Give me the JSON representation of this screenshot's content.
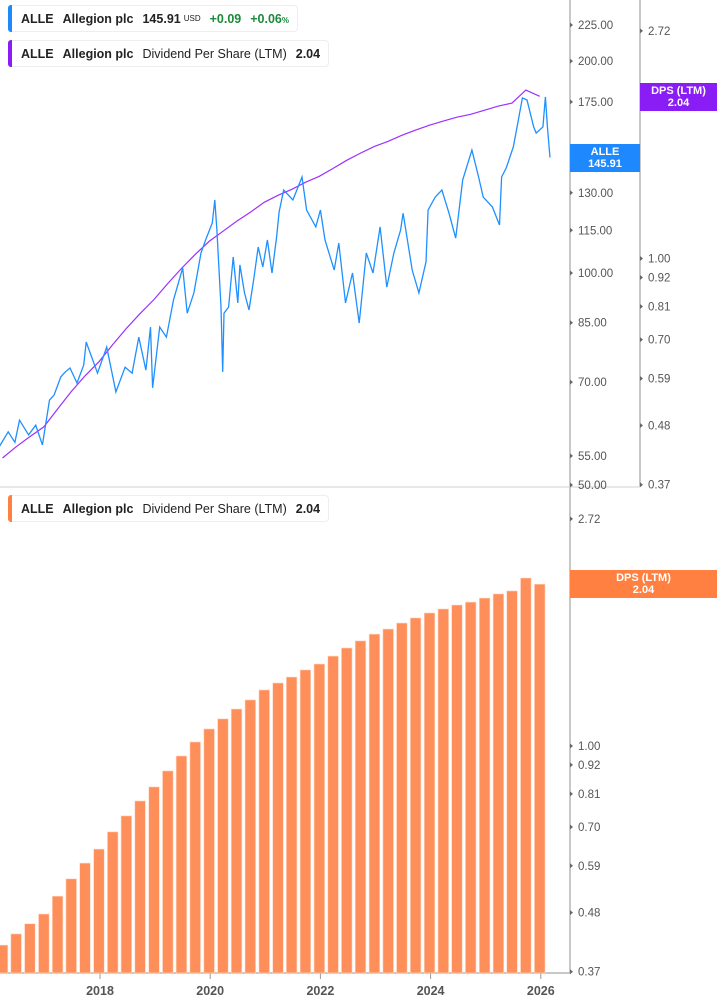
{
  "legend_price": {
    "ticker": "ALLE",
    "company": "Allegion plc",
    "price": "145.91",
    "currency": "USD",
    "change": "+0.09",
    "change_pct": "+0.06",
    "pct_sign": "%",
    "color": "#1e88ff"
  },
  "legend_dps_top": {
    "ticker": "ALLE",
    "company": "Allegion plc",
    "metric": "Dividend Per Share (LTM)",
    "value": "2.04",
    "color": "#8a1cf5"
  },
  "legend_dps_bottom": {
    "ticker": "ALLE",
    "company": "Allegion plc",
    "metric": "Dividend Per Share (LTM)",
    "value": "2.04",
    "color": "#ff8040"
  },
  "badges": {
    "price": {
      "label": "ALLE",
      "value": "145.91",
      "color": "#1e88ff"
    },
    "dps_top": {
      "label": "DPS (LTM)",
      "value": "2.04",
      "color": "#8a1cf5"
    },
    "dps_bottom": {
      "label": "DPS (LTM)",
      "value": "2.04",
      "color": "#ff8040"
    }
  },
  "chart_data": [
    {
      "type": "line",
      "scale": "log",
      "series": [
        {
          "name": "ALLE",
          "axis": "left",
          "color": "#1e90ff",
          "points": [
            [
              "2016-03-01",
              56.6
            ],
            [
              "2016-05-01",
              59.5
            ],
            [
              "2016-06-15",
              57.5
            ],
            [
              "2016-07-15",
              61.8
            ],
            [
              "2016-09-15",
              58.9
            ],
            [
              "2016-11-01",
              60.8
            ],
            [
              "2016-12-15",
              57.0
            ],
            [
              "2017-02-01",
              66.0
            ],
            [
              "2017-03-01",
              67.1
            ],
            [
              "2017-04-15",
              71.2
            ],
            [
              "2017-05-15",
              72.4
            ],
            [
              "2017-06-15",
              73.3
            ],
            [
              "2017-08-01",
              69.8
            ],
            [
              "2017-09-15",
              74.0
            ],
            [
              "2017-10-01",
              79.8
            ],
            [
              "2017-12-15",
              72.1
            ],
            [
              "2018-02-15",
              78.5
            ],
            [
              "2018-04-15",
              67.8
            ],
            [
              "2018-06-15",
              73.5
            ],
            [
              "2018-08-01",
              72.1
            ],
            [
              "2018-09-15",
              81.1
            ],
            [
              "2018-11-01",
              72.8
            ],
            [
              "2018-12-01",
              83.8
            ],
            [
              "2018-12-15",
              68.7
            ],
            [
              "2019-02-01",
              83.8
            ],
            [
              "2019-03-15",
              81.1
            ],
            [
              "2019-05-01",
              91.6
            ],
            [
              "2019-07-01",
              101.7
            ],
            [
              "2019-08-01",
              87.7
            ],
            [
              "2019-09-15",
              93.7
            ],
            [
              "2019-11-01",
              106.8
            ],
            [
              "2019-12-01",
              111.4
            ],
            [
              "2020-01-15",
              117.8
            ],
            [
              "2020-02-01",
              127.0
            ],
            [
              "2020-02-15",
              115.1
            ],
            [
              "2020-03-12",
              89.5
            ],
            [
              "2020-03-23",
              72.4
            ],
            [
              "2020-04-01",
              87.7
            ],
            [
              "2020-05-01",
              89.5
            ],
            [
              "2020-06-01",
              105.4
            ],
            [
              "2020-07-01",
              90.7
            ],
            [
              "2020-07-15",
              102.7
            ],
            [
              "2020-08-15",
              93.7
            ],
            [
              "2020-09-15",
              88.6
            ],
            [
              "2020-10-15",
              97.7
            ],
            [
              "2020-11-15",
              108.9
            ],
            [
              "2020-12-15",
              102.0
            ],
            [
              "2021-01-15",
              111.4
            ],
            [
              "2021-02-15",
              100.0
            ],
            [
              "2021-03-15",
              112.5
            ],
            [
              "2021-04-01",
              122.1
            ],
            [
              "2021-05-01",
              131.2
            ],
            [
              "2021-07-01",
              127.0
            ],
            [
              "2021-09-01",
              136.9
            ],
            [
              "2021-10-01",
              122.9
            ],
            [
              "2021-12-01",
              116.3
            ],
            [
              "2022-01-01",
              122.9
            ],
            [
              "2022-02-01",
              111.4
            ],
            [
              "2022-04-01",
              101.0
            ],
            [
              "2022-05-01",
              110.3
            ],
            [
              "2022-06-15",
              90.7
            ],
            [
              "2022-08-01",
              100.0
            ],
            [
              "2022-09-15",
              84.9
            ],
            [
              "2022-11-01",
              106.8
            ],
            [
              "2022-12-15",
              100.0
            ],
            [
              "2023-02-01",
              116.3
            ],
            [
              "2023-03-15",
              95.5
            ],
            [
              "2023-05-01",
              106.8
            ],
            [
              "2023-06-15",
              115.1
            ],
            [
              "2023-07-01",
              121.6
            ],
            [
              "2023-09-01",
              101.0
            ],
            [
              "2023-10-15",
              93.7
            ],
            [
              "2023-12-01",
              103.7
            ],
            [
              "2023-12-15",
              122.9
            ],
            [
              "2024-02-01",
              128.2
            ],
            [
              "2024-03-15",
              131.2
            ],
            [
              "2024-05-01",
              121.6
            ],
            [
              "2024-06-15",
              112.1
            ],
            [
              "2024-08-01",
              135.6
            ],
            [
              "2024-10-01",
              149.5
            ],
            [
              "2024-11-15",
              136.9
            ],
            [
              "2024-12-15",
              128.2
            ],
            [
              "2025-02-15",
              124.1
            ],
            [
              "2025-04-01",
              117.0
            ],
            [
              "2025-04-15",
              136.9
            ],
            [
              "2025-05-15",
              141.0
            ],
            [
              "2025-07-01",
              151.0
            ],
            [
              "2025-08-01",
              163.4
            ],
            [
              "2025-09-01",
              177.3
            ],
            [
              "2025-10-01",
              176.1
            ],
            [
              "2025-11-15",
              161.2
            ],
            [
              "2025-12-01",
              158.1
            ],
            [
              "2026-01-15",
              161.2
            ],
            [
              "2026-02-01",
              177.9
            ],
            [
              "2026-02-15",
              160.7
            ],
            [
              "2026-03-01",
              145.91
            ]
          ]
        },
        {
          "name": "Dividend Per Share (LTM)",
          "axis": "right",
          "color": "#9b30ff",
          "use": "dps"
        }
      ],
      "left_axis": {
        "ticks": [
          "225.00",
          "200.00",
          "175.00",
          "130.00",
          "115.00",
          "100.00",
          "85.00",
          "70.00",
          "55.00",
          "50.00"
        ],
        "range": [
          50,
          225
        ]
      },
      "right_axis": {
        "ticks": [
          "2.72",
          "1.00",
          "0.92",
          "0.81",
          "0.70",
          "0.59",
          "0.48",
          "0.37"
        ],
        "range": [
          0.37,
          2.72
        ]
      }
    },
    {
      "type": "bar",
      "scale": "log",
      "color": "#ff8f5a",
      "series_name": "Dividend Per Share (LTM)",
      "dates": [
        "2016-03-31",
        "2016-06-30",
        "2016-09-30",
        "2016-12-31",
        "2017-03-31",
        "2017-06-30",
        "2017-09-30",
        "2017-12-31",
        "2018-03-31",
        "2018-06-30",
        "2018-09-30",
        "2018-12-31",
        "2019-03-31",
        "2019-06-30",
        "2019-09-30",
        "2019-12-31",
        "2020-03-31",
        "2020-06-30",
        "2020-09-30",
        "2020-12-31",
        "2021-03-31",
        "2021-06-30",
        "2021-09-30",
        "2021-12-31",
        "2022-03-31",
        "2022-06-30",
        "2022-09-30",
        "2022-12-31",
        "2023-03-31",
        "2023-06-30",
        "2023-09-30",
        "2023-12-31",
        "2024-03-31",
        "2024-06-30",
        "2024-09-30",
        "2024-12-31",
        "2025-03-31",
        "2025-06-30",
        "2025-09-30",
        "2025-12-31"
      ],
      "values": [
        0.416,
        0.437,
        0.457,
        0.477,
        0.516,
        0.557,
        0.597,
        0.635,
        0.685,
        0.735,
        0.785,
        0.835,
        0.896,
        0.957,
        1.018,
        1.078,
        1.127,
        1.177,
        1.225,
        1.28,
        1.32,
        1.355,
        1.398,
        1.435,
        1.486,
        1.54,
        1.589,
        1.637,
        1.674,
        1.719,
        1.758,
        1.797,
        1.829,
        1.861,
        1.885,
        1.919,
        1.954,
        1.98,
        2.096,
        2.04
      ],
      "y_axis": {
        "ticks": [
          "2.72",
          "1.00",
          "0.92",
          "0.81",
          "0.70",
          "0.59",
          "0.48",
          "0.37"
        ],
        "range": [
          0.37,
          2.72
        ]
      },
      "x_axis": {
        "ticks": [
          "2018",
          "2020",
          "2022",
          "2024",
          "2026"
        ]
      }
    }
  ]
}
